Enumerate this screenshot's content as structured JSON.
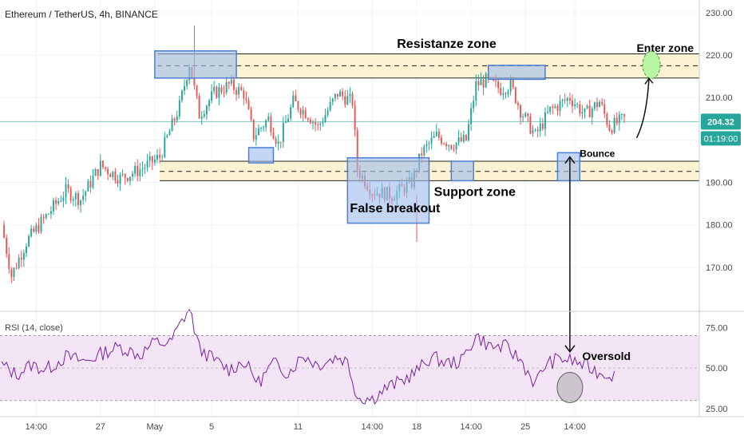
{
  "header": {
    "symbol": "Ethereum / TetherUS, 4h, BINANCE"
  },
  "price_badge": {
    "value": "204.32",
    "countdown": "01:19:00"
  },
  "colors": {
    "up": "#26a69a",
    "down": "#ef5350",
    "zone_fill": "#fdf3d3",
    "box_fill": "#9bbcec",
    "rsi_line": "#7b1fa2",
    "rsi_band": "#f3e5f5",
    "green_circle": "#b9f6a3"
  },
  "chart_data": [
    {
      "type": "candlestick",
      "title": "Ethereum / TetherUS, 4h, BINANCE",
      "ylim": [
        160,
        233
      ],
      "y_ticks": [
        "230.00",
        "220.00",
        "210.00",
        "200.00",
        "190.00",
        "180.00",
        "170.00"
      ],
      "x_ticks": [
        "14:00",
        "27",
        "May",
        "5",
        "11",
        "14:00",
        "18",
        "14:00",
        "25",
        "14:00"
      ],
      "last_price": 204.32,
      "close_path": [
        [
          0,
          180
        ],
        [
          4,
          168
        ],
        [
          10,
          176
        ],
        [
          18,
          182
        ],
        [
          26,
          188
        ],
        [
          32,
          186
        ],
        [
          40,
          194
        ],
        [
          48,
          191
        ],
        [
          56,
          193
        ],
        [
          64,
          196
        ],
        [
          72,
          208
        ],
        [
          76,
          218
        ],
        [
          80,
          206
        ],
        [
          86,
          211
        ],
        [
          92,
          213
        ],
        [
          98,
          211
        ],
        [
          102,
          201
        ],
        [
          108,
          205
        ],
        [
          112,
          199
        ],
        [
          118,
          209
        ],
        [
          124,
          206
        ],
        [
          128,
          203
        ],
        [
          136,
          211
        ],
        [
          142,
          209
        ],
        [
          144,
          193
        ],
        [
          150,
          188
        ],
        [
          158,
          187
        ],
        [
          166,
          190
        ],
        [
          170,
          197
        ],
        [
          176,
          201
        ],
        [
          182,
          199
        ],
        [
          188,
          200
        ],
        [
          192,
          213
        ],
        [
          196,
          214
        ],
        [
          202,
          212
        ],
        [
          206,
          213
        ],
        [
          210,
          207
        ],
        [
          216,
          201
        ],
        [
          222,
          207
        ],
        [
          230,
          210
        ],
        [
          236,
          206
        ],
        [
          242,
          209
        ],
        [
          246,
          203
        ],
        [
          252,
          205
        ]
      ],
      "annotations": {
        "resistance_label": "Resistanze zone",
        "support_label": "Support zone",
        "false_breakout_label": "False breakout",
        "enter_zone_label": "Enter zone",
        "bounce_label": "Bounce"
      },
      "zones": {
        "resistance": {
          "upper": 220.3,
          "mid": 217.5,
          "lower": 214.6
        },
        "support": {
          "upper": 195.0,
          "mid": 192.6,
          "lower": 190.4
        }
      }
    },
    {
      "type": "line",
      "title": "RSI (14, close)",
      "ylim": [
        20,
        84
      ],
      "y_ticks": [
        "75.00",
        "50.00",
        "25.00"
      ],
      "band": [
        30,
        70
      ],
      "midline": 50,
      "path": [
        [
          0,
          52
        ],
        [
          6,
          46
        ],
        [
          12,
          52
        ],
        [
          18,
          49
        ],
        [
          26,
          57
        ],
        [
          34,
          54
        ],
        [
          42,
          60
        ],
        [
          48,
          63
        ],
        [
          56,
          58
        ],
        [
          62,
          66
        ],
        [
          68,
          65
        ],
        [
          72,
          76
        ],
        [
          76,
          87
        ],
        [
          80,
          62
        ],
        [
          86,
          55
        ],
        [
          92,
          49
        ],
        [
          98,
          54
        ],
        [
          104,
          41
        ],
        [
          110,
          53
        ],
        [
          116,
          47
        ],
        [
          122,
          58
        ],
        [
          128,
          52
        ],
        [
          136,
          57
        ],
        [
          140,
          54
        ],
        [
          144,
          32
        ],
        [
          150,
          31
        ],
        [
          156,
          38
        ],
        [
          162,
          42
        ],
        [
          168,
          48
        ],
        [
          174,
          57
        ],
        [
          180,
          53
        ],
        [
          186,
          54
        ],
        [
          192,
          70
        ],
        [
          198,
          63
        ],
        [
          204,
          63
        ],
        [
          210,
          55
        ],
        [
          216,
          40
        ],
        [
          220,
          52
        ],
        [
          226,
          56
        ],
        [
          232,
          54
        ],
        [
          238,
          50
        ],
        [
          242,
          47
        ],
        [
          248,
          46
        ]
      ],
      "annotations": {
        "oversold_label": "Oversold"
      }
    }
  ]
}
